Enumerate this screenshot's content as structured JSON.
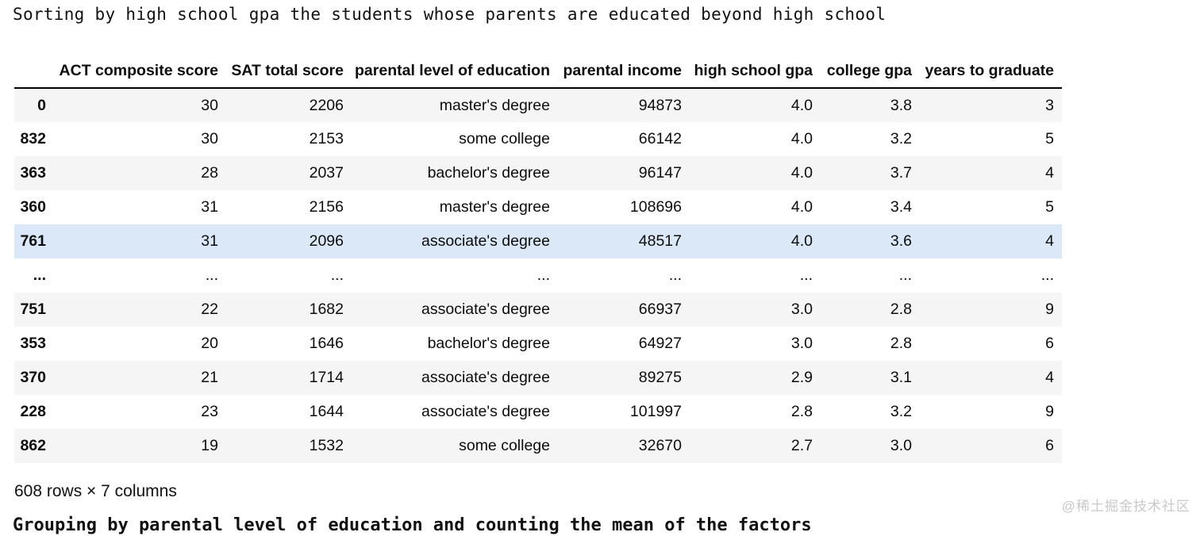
{
  "code_line": "Sorting by high school gpa the students whose parents are educated beyond high school",
  "table": {
    "columns": [
      "",
      "ACT composite score",
      "SAT total score",
      "parental level of education",
      "parental income",
      "high school gpa",
      "college gpa",
      "years to graduate"
    ],
    "rows": [
      {
        "index": "0",
        "cells": [
          "30",
          "2206",
          "master's degree",
          "94873",
          "4.0",
          "3.8",
          "3"
        ],
        "highlight": false
      },
      {
        "index": "832",
        "cells": [
          "30",
          "2153",
          "some college",
          "66142",
          "4.0",
          "3.2",
          "5"
        ],
        "highlight": false
      },
      {
        "index": "363",
        "cells": [
          "28",
          "2037",
          "bachelor's degree",
          "96147",
          "4.0",
          "3.7",
          "4"
        ],
        "highlight": false
      },
      {
        "index": "360",
        "cells": [
          "31",
          "2156",
          "master's degree",
          "108696",
          "4.0",
          "3.4",
          "5"
        ],
        "highlight": false
      },
      {
        "index": "761",
        "cells": [
          "31",
          "2096",
          "associate's degree",
          "48517",
          "4.0",
          "3.6",
          "4"
        ],
        "highlight": true
      },
      {
        "index": "...",
        "cells": [
          "...",
          "...",
          "...",
          "...",
          "...",
          "...",
          "..."
        ],
        "highlight": false
      },
      {
        "index": "751",
        "cells": [
          "22",
          "1682",
          "associate's degree",
          "66937",
          "3.0",
          "2.8",
          "9"
        ],
        "highlight": false
      },
      {
        "index": "353",
        "cells": [
          "20",
          "1646",
          "bachelor's degree",
          "64927",
          "3.0",
          "2.8",
          "6"
        ],
        "highlight": false
      },
      {
        "index": "370",
        "cells": [
          "21",
          "1714",
          "associate's degree",
          "89275",
          "2.9",
          "3.1",
          "4"
        ],
        "highlight": false
      },
      {
        "index": "228",
        "cells": [
          "23",
          "1644",
          "associate's degree",
          "101997",
          "2.8",
          "3.2",
          "9"
        ],
        "highlight": false
      },
      {
        "index": "862",
        "cells": [
          "19",
          "1532",
          "some college",
          "32670",
          "2.7",
          "3.0",
          "6"
        ],
        "highlight": false
      }
    ],
    "summary": "608 rows × 7 columns"
  },
  "partial_bottom_line": "Grouping by parental level of education and counting the mean of the factors",
  "watermark": "@稀土掘金技术社区",
  "colors": {
    "stripe": "#f5f5f5",
    "row_highlight": "#dbe8f8",
    "header_border": "#000000",
    "watermark_text": "#c9c9c9"
  }
}
